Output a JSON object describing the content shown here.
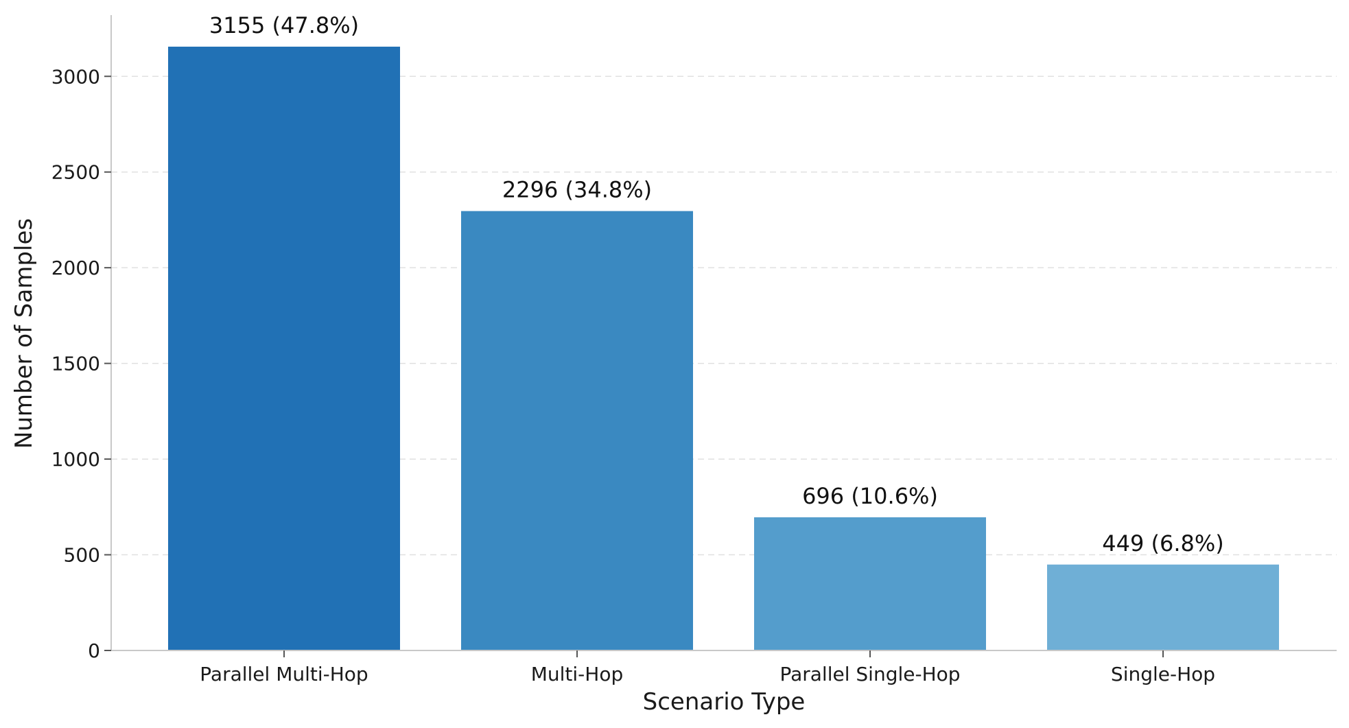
{
  "chart_data": {
    "type": "bar",
    "title": "",
    "xlabel": "Scenario Type",
    "ylabel": "Number of Samples",
    "categories": [
      "Parallel Multi-Hop",
      "Multi-Hop",
      "Parallel Single-Hop",
      "Single-Hop"
    ],
    "values": [
      3155,
      2296,
      696,
      449
    ],
    "bar_labels": [
      "3155 (47.8%)",
      "2296 (34.8%)",
      "696 (10.6%)",
      "449 (6.8%)"
    ],
    "colors": [
      "#2171b5",
      "#3a89c1",
      "#549dcc",
      "#6fafd6"
    ],
    "ylim": [
      0,
      3320
    ],
    "yticks": [
      0,
      500,
      1000,
      1500,
      2000,
      2500,
      3000
    ],
    "grid": "y-dashed",
    "legend": "none"
  }
}
